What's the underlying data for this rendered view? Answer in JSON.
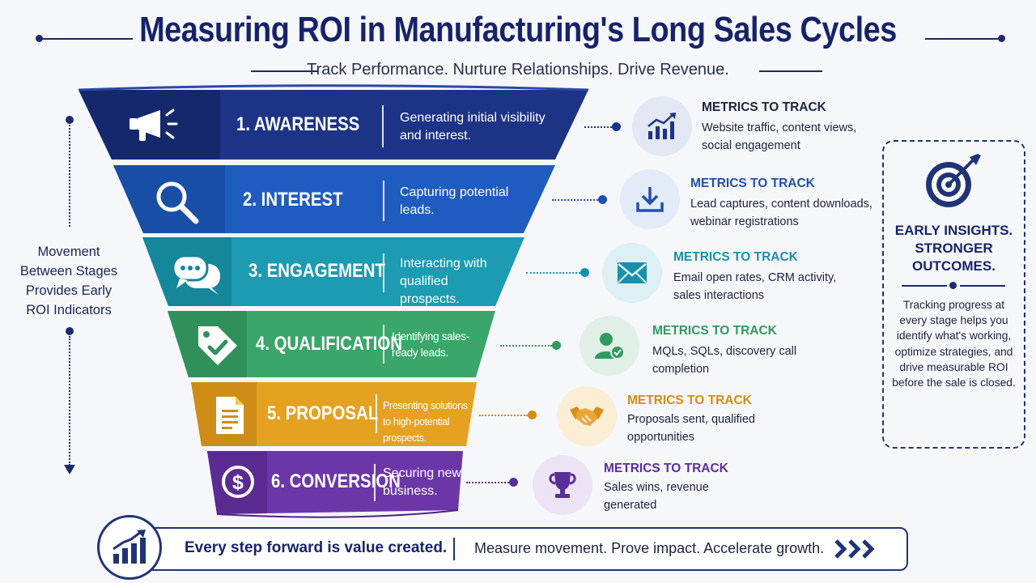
{
  "header": {
    "title": "Measuring ROI in Manufacturing's Long Sales Cycles",
    "subtitle": "Track Performance. Nurture Relationships. Drive Revenue."
  },
  "movement": {
    "label": "Movement Between Stages Provides Early ROI Indicators"
  },
  "stages": [
    {
      "title": "1. AWARENESS",
      "desc": "Generating initial visibility and interest.",
      "color": "#1d3486",
      "icon": "megaphone-icon",
      "metrics_title": "METRICS TO TRACK",
      "metrics_color": "#1d3486",
      "metrics_text": "Website traffic, content views, social engagement",
      "metric_icon": "chart-growth-icon"
    },
    {
      "title": "2. INTEREST",
      "desc": "Capturing potential leads.",
      "color": "#1f5cbf",
      "icon": "magnifier-icon",
      "metrics_title": "METRICS TO TRACK",
      "metrics_color": "#1f4fb0",
      "metrics_text": "Lead captures, content downloads, webinar registrations",
      "metric_icon": "download-icon"
    },
    {
      "title": "3. ENGAGEMENT",
      "desc": "Interacting with qualified prospects.",
      "color": "#1c9bb2",
      "icon": "chat-bubbles-icon",
      "metrics_title": "METRICS TO TRACK",
      "metrics_color": "#1891a8",
      "metrics_text": "Email open rates, CRM activity, sales interactions",
      "metric_icon": "envelope-icon"
    },
    {
      "title": "4. QUALIFICATION",
      "desc": "Identifying sales-ready leads.",
      "color": "#3aa66a",
      "icon": "tag-check-icon",
      "metrics_title": "METRICS TO TRACK",
      "metrics_color": "#2f9a5d",
      "metrics_text": "MQLs, SQLs, discovery call completion",
      "metric_icon": "user-check-icon"
    },
    {
      "title": "5. PROPOSAL",
      "desc": "Presenting solutions to high-potential prospects.",
      "color": "#e5a121",
      "icon": "document-icon",
      "metrics_title": "METRICS TO TRACK",
      "metrics_color": "#d98b12",
      "metrics_text": "Proposals sent, qualified opportunities",
      "metric_icon": "handshake-icon"
    },
    {
      "title": "6. CONVERSION",
      "desc": "Securing new business.",
      "color": "#6b37a8",
      "icon": "dollar-coin-icon",
      "metrics_title": "METRICS TO TRACK",
      "metrics_color": "#5b2d9a",
      "metrics_text": "Sales wins, revenue generated",
      "metric_icon": "trophy-icon"
    }
  ],
  "insight": {
    "headline": "EARLY INSIGHTS. STRONGER OUTCOMES.",
    "body": "Tracking progress at every stage helps you identify what's working, optimize strategies, and drive measurable ROI before the sale is closed.",
    "icon": "target-arrow-icon"
  },
  "footer": {
    "left": "Every step forward is value created.",
    "right": "Measure movement. Prove impact. Accelerate growth.",
    "icon": "bar-chart-growth-icon",
    "arrows_icon": "triple-chevron-icon"
  }
}
